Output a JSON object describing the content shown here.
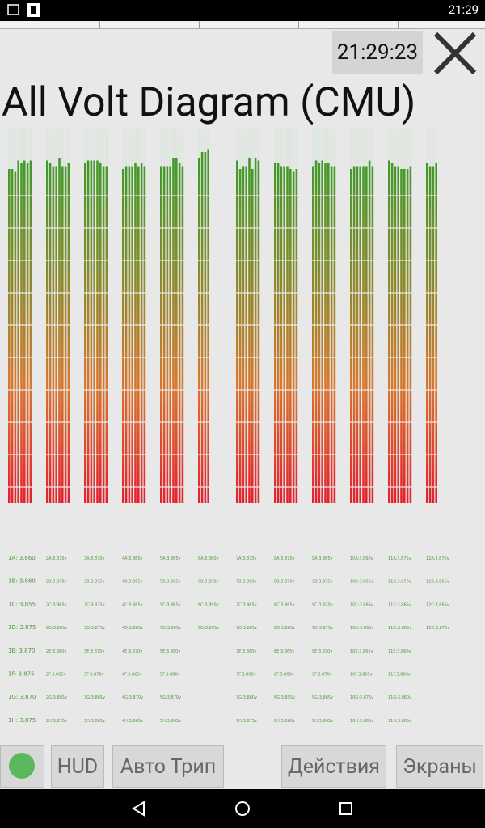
{
  "status_bar": {
    "time": "21:29"
  },
  "clock": "21:29:23",
  "title": "All Volt Diagram (CMU)",
  "diagram": {
    "ylim": [
      3.27,
      3.93
    ],
    "modules": [
      {
        "cells": [
          {
            "label": "1A: 3.860",
            "value": 3.86
          },
          {
            "label": "1B: 3.860",
            "value": 3.86
          },
          {
            "label": "1C: 3.855",
            "value": 3.855
          },
          {
            "label": "1D: 3.875",
            "value": 3.875
          },
          {
            "label": "1E: 3.870",
            "value": 3.87
          },
          {
            "label": "1F: 3.875",
            "value": 3.875
          },
          {
            "label": "1G: 3.870",
            "value": 3.87
          },
          {
            "label": "1H: 3.875",
            "value": 3.875
          }
        ]
      },
      {
        "cells": [
          {
            "label": "2A:3.875v",
            "value": 3.875
          },
          {
            "label": "2B:3.870v",
            "value": 3.87
          },
          {
            "label": "2C:3.865v",
            "value": 3.865
          },
          {
            "label": "2D:3.865v",
            "value": 3.865
          },
          {
            "label": "2E:3.880v",
            "value": 3.88
          },
          {
            "label": "2F:3.865v",
            "value": 3.865
          },
          {
            "label": "2G:3.865v",
            "value": 3.865
          },
          {
            "label": "2H:3.870v",
            "value": 3.87
          }
        ]
      },
      {
        "cells": [
          {
            "label": "3A:3.870v",
            "value": 3.87
          },
          {
            "label": "3B:3.875v",
            "value": 3.875
          },
          {
            "label": "3C:3.875v",
            "value": 3.875
          },
          {
            "label": "3D:3.875v",
            "value": 3.875
          },
          {
            "label": "3E:3.875v",
            "value": 3.875
          },
          {
            "label": "3F:3.870v",
            "value": 3.87
          },
          {
            "label": "3G:3.865v",
            "value": 3.865
          },
          {
            "label": "3H:3.865v",
            "value": 3.865
          }
        ]
      },
      {
        "cells": [
          {
            "label": "4A:3.860v",
            "value": 3.86
          },
          {
            "label": "4B:3.865v",
            "value": 3.865
          },
          {
            "label": "4C:3.865v",
            "value": 3.865
          },
          {
            "label": "4D:3.865v",
            "value": 3.865
          },
          {
            "label": "4E:3.870v",
            "value": 3.87
          },
          {
            "label": "4F:3.865v",
            "value": 3.865
          },
          {
            "label": "4G:3.870v",
            "value": 3.87
          },
          {
            "label": "4H:3.865v",
            "value": 3.865
          }
        ]
      },
      {
        "cells": [
          {
            "label": "5A:3.865v",
            "value": 3.865
          },
          {
            "label": "5B:3.865v",
            "value": 3.865
          },
          {
            "label": "5C:3.865v",
            "value": 3.865
          },
          {
            "label": "5D:3.865v",
            "value": 3.865
          },
          {
            "label": "5E:3.880v",
            "value": 3.88
          },
          {
            "label": "5F:3.880v",
            "value": 3.88
          },
          {
            "label": "5G:3.870v",
            "value": 3.87
          },
          {
            "label": "5H:3.865v",
            "value": 3.865
          }
        ]
      },
      {
        "cells": [
          {
            "label": "6A:3.880v",
            "value": 3.88
          },
          {
            "label": "6B:3.890v",
            "value": 3.89
          },
          {
            "label": "6C:3.890v",
            "value": 3.89
          },
          {
            "label": "6D:3.895v",
            "value": 3.895
          }
        ]
      },
      {
        "cells": [
          {
            "label": "7A:3.875v",
            "value": 3.875
          },
          {
            "label": "7B:3.860v",
            "value": 3.86
          },
          {
            "label": "7C:3.865v",
            "value": 3.865
          },
          {
            "label": "7D:3.865v",
            "value": 3.865
          },
          {
            "label": "7E:3.880v",
            "value": 3.88
          },
          {
            "label": "7F:3.860v",
            "value": 3.86
          },
          {
            "label": "7G:3.880v",
            "value": 3.88
          },
          {
            "label": "7H:3.875v",
            "value": 3.875
          }
        ]
      },
      {
        "cells": [
          {
            "label": "8A:3.870v",
            "value": 3.87
          },
          {
            "label": "8B:3.870v",
            "value": 3.87
          },
          {
            "label": "8C:3.865v",
            "value": 3.865
          },
          {
            "label": "8D:3.865v",
            "value": 3.865
          },
          {
            "label": "8E:3.865v",
            "value": 3.865
          },
          {
            "label": "8F:3.860v",
            "value": 3.86
          },
          {
            "label": "8G:3.855v",
            "value": 3.855
          },
          {
            "label": "8H:3.860v",
            "value": 3.86
          }
        ]
      },
      {
        "cells": [
          {
            "label": "9A:3.865v",
            "value": 3.865
          },
          {
            "label": "9B:3.875v",
            "value": 3.875
          },
          {
            "label": "9C:3.870v",
            "value": 3.87
          },
          {
            "label": "9D:3.875v",
            "value": 3.875
          },
          {
            "label": "9E:3.870v",
            "value": 3.87
          },
          {
            "label": "9F:3.870v",
            "value": 3.87
          },
          {
            "label": "9G:3.865v",
            "value": 3.865
          },
          {
            "label": "9H:3.865v",
            "value": 3.865
          }
        ]
      },
      {
        "cells": [
          {
            "label": "10A:3.860v",
            "value": 3.86
          },
          {
            "label": "10B:3.865v",
            "value": 3.865
          },
          {
            "label": "10C:3.865v",
            "value": 3.865
          },
          {
            "label": "10D:3.865v",
            "value": 3.865
          },
          {
            "label": "10E:3.865v",
            "value": 3.865
          },
          {
            "label": "10F:3.865v",
            "value": 3.865
          },
          {
            "label": "10G:3.875v",
            "value": 3.875
          },
          {
            "label": "10H:3.865v",
            "value": 3.865
          }
        ]
      },
      {
        "cells": [
          {
            "label": "11A:3.875v",
            "value": 3.875
          },
          {
            "label": "11B:3.870v",
            "value": 3.87
          },
          {
            "label": "11C:3.865v",
            "value": 3.865
          },
          {
            "label": "11D:3.865v",
            "value": 3.865
          },
          {
            "label": "11E:3.860v",
            "value": 3.86
          },
          {
            "label": "11F:3.860v",
            "value": 3.86
          },
          {
            "label": "11G:3.860v",
            "value": 3.86
          },
          {
            "label": "11H:3.865v",
            "value": 3.865
          }
        ]
      },
      {
        "cells": [
          {
            "label": "12A:3.870v",
            "value": 3.87
          },
          {
            "label": "12B:3.865v",
            "value": 3.865
          },
          {
            "label": "12C:3.865v",
            "value": 3.865
          },
          {
            "label": "12D:3.870v",
            "value": 3.87
          }
        ]
      }
    ]
  },
  "buttons": [
    "HUD",
    "Авто Трип",
    "Действия",
    "Экраны"
  ]
}
